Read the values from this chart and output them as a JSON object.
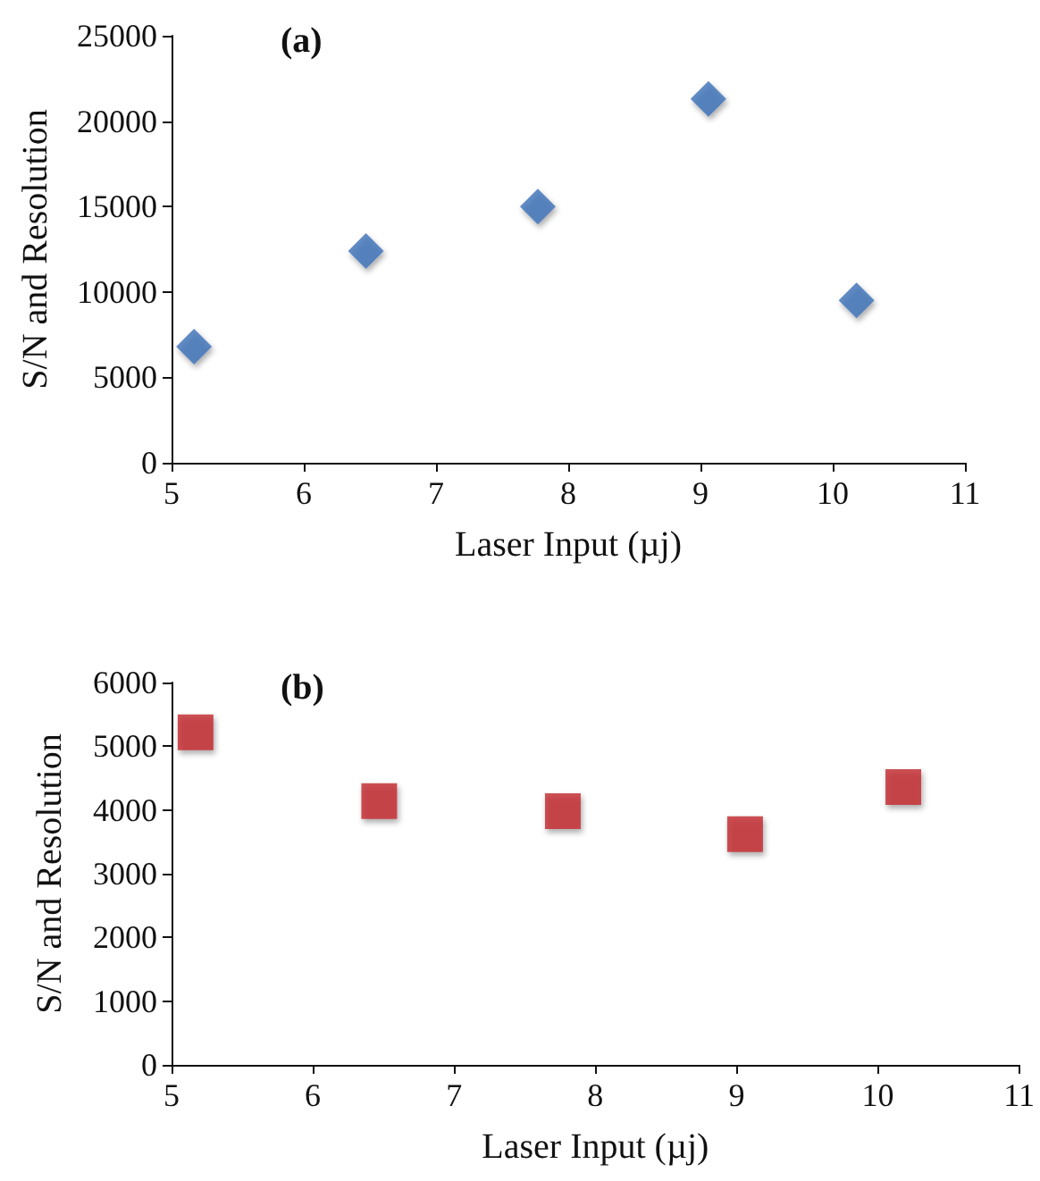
{
  "chart_data": [
    {
      "type": "scatter",
      "title": "(a)",
      "xlabel": "Laser Input (µj)",
      "ylabel": "S/N and Resolution",
      "x": [
        5.17,
        6.47,
        7.77,
        9.06,
        10.18
      ],
      "values": [
        6800,
        12400,
        15000,
        21300,
        9500
      ],
      "color": "#3b6fb6",
      "marker": "diamond",
      "xlim": [
        5,
        11
      ],
      "xticks": [
        5,
        6,
        7,
        8,
        9,
        10,
        11
      ],
      "ylim": [
        0,
        25000
      ],
      "yticks": [
        0,
        5000,
        10000,
        15000,
        20000,
        25000
      ]
    },
    {
      "type": "scatter",
      "title": "(b)",
      "xlabel": "Laser Input (µj)",
      "ylabel": "S/N and Resolution",
      "x": [
        5.17,
        6.47,
        7.77,
        9.06,
        10.18
      ],
      "values": [
        5220,
        4140,
        3980,
        3620,
        4360
      ],
      "color": "#c0282d",
      "marker": "square",
      "xlim": [
        5,
        11
      ],
      "xticks": [
        5,
        6,
        7,
        8,
        9,
        10,
        11
      ],
      "ylim": [
        0,
        6000
      ],
      "yticks": [
        0,
        1000,
        2000,
        3000,
        4000,
        5000,
        6000
      ]
    }
  ]
}
